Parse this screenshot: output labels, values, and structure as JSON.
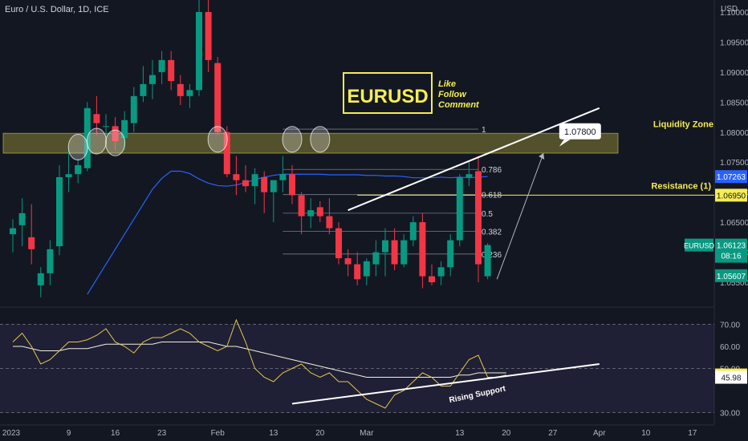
{
  "header": {
    "symbol_title": "Euro / U.S. Dollar, 1D, ICE",
    "currency": "USD"
  },
  "chart_data": {
    "type": "candlestick",
    "instrument": "EURUSD",
    "price_axis": {
      "min": 1.051,
      "max": 1.102,
      "ticks": [
        "1.05500",
        "1.06000",
        "1.06500",
        "1.07000",
        "1.07500",
        "1.08000",
        "1.08500",
        "1.09000",
        "1.09500",
        "1.10000"
      ]
    },
    "time_axis": {
      "labels": [
        "2023",
        "9",
        "16",
        "23",
        "Feb",
        "13",
        "20",
        "Mar",
        "13",
        "20",
        "27",
        "Apr",
        "10",
        "17"
      ],
      "label_bar_index": [
        -10,
        6,
        11,
        16,
        22,
        28,
        33,
        38,
        48,
        53,
        58,
        63,
        68,
        73
      ]
    },
    "candles": [
      [
        1.063,
        1.0655,
        1.06,
        1.064
      ],
      [
        1.0645,
        1.069,
        1.061,
        1.0665
      ],
      [
        1.0625,
        1.068,
        1.058,
        1.0605
      ],
      [
        1.0545,
        1.0575,
        1.0525,
        1.0565
      ],
      [
        1.0565,
        1.062,
        1.0545,
        1.0605
      ],
      [
        1.061,
        1.0745,
        1.0595,
        1.0725
      ],
      [
        1.0725,
        1.077,
        1.07,
        1.073
      ],
      [
        1.073,
        1.0755,
        1.0715,
        1.0745
      ],
      [
        1.074,
        1.085,
        1.0735,
        1.084
      ],
      [
        1.083,
        1.086,
        1.0795,
        1.0815
      ],
      [
        1.081,
        1.083,
        1.0785,
        1.081
      ],
      [
        1.081,
        1.0825,
        1.077,
        1.0785
      ],
      [
        1.079,
        1.0835,
        1.077,
        1.082
      ],
      [
        1.0815,
        1.0875,
        1.08,
        1.086
      ],
      [
        1.086,
        1.091,
        1.085,
        1.088
      ],
      [
        1.088,
        1.092,
        1.0855,
        1.0895
      ],
      [
        1.09,
        1.0935,
        1.088,
        1.092
      ],
      [
        1.092,
        1.0935,
        1.087,
        1.0885
      ],
      [
        1.088,
        1.0895,
        1.0845,
        1.086
      ],
      [
        1.086,
        1.088,
        1.084,
        1.087
      ],
      [
        1.087,
        1.103,
        1.086,
        1.1
      ],
      [
        1.1,
        1.1035,
        1.09,
        1.092
      ],
      [
        1.0915,
        1.0925,
        1.0795,
        1.08
      ],
      [
        1.08,
        1.081,
        1.0725,
        1.073
      ],
      [
        1.073,
        1.076,
        1.0695,
        1.072
      ],
      [
        1.072,
        1.0745,
        1.07,
        1.071
      ],
      [
        1.071,
        1.074,
        1.068,
        1.073
      ],
      [
        1.0725,
        1.0735,
        1.0665,
        1.07
      ],
      [
        1.07,
        1.072,
        1.065,
        1.072
      ],
      [
        1.072,
        1.076,
        1.07,
        1.073
      ],
      [
        1.073,
        1.0745,
        1.068,
        1.0695
      ],
      [
        1.0695,
        1.07,
        1.063,
        1.066
      ],
      [
        1.066,
        1.069,
        1.064,
        1.067
      ],
      [
        1.0675,
        1.0685,
        1.065,
        1.066
      ],
      [
        1.066,
        1.069,
        1.063,
        1.064
      ],
      [
        1.064,
        1.065,
        1.058,
        1.059
      ],
      [
        1.059,
        1.0605,
        1.056,
        1.058
      ],
      [
        1.058,
        1.06,
        1.0545,
        1.0555
      ],
      [
        1.056,
        1.059,
        1.0545,
        1.0585
      ],
      [
        1.058,
        1.062,
        1.056,
        1.06
      ],
      [
        1.06,
        1.064,
        1.056,
        1.062
      ],
      [
        1.062,
        1.064,
        1.057,
        1.058
      ],
      [
        1.058,
        1.063,
        1.0575,
        1.062
      ],
      [
        1.062,
        1.066,
        1.061,
        1.065
      ],
      [
        1.065,
        1.0665,
        1.054,
        1.056
      ],
      [
        1.056,
        1.058,
        1.0545,
        1.055
      ],
      [
        1.056,
        1.0585,
        1.0545,
        1.0575
      ],
      [
        1.0575,
        1.063,
        1.056,
        1.062
      ],
      [
        1.062,
        1.073,
        1.061,
        1.0725
      ],
      [
        1.0725,
        1.075,
        1.071,
        1.073
      ],
      [
        1.0735,
        1.076,
        1.055,
        1.058
      ],
      [
        1.056,
        1.0615,
        1.0555,
        1.0612
      ]
    ],
    "moving_average": {
      "start_bar": 8,
      "values": [
        1.053,
        1.0555,
        1.058,
        1.0605,
        1.063,
        1.0655,
        1.068,
        1.0705,
        1.0723,
        1.0735,
        1.0735,
        1.0731,
        1.0722,
        1.0715,
        1.0711,
        1.071,
        1.0712,
        1.0716,
        1.0721,
        1.0725,
        1.0728,
        1.073,
        1.073,
        1.073,
        1.073,
        1.073,
        1.0729,
        1.0729,
        1.0729,
        1.0729,
        1.0728,
        1.0728,
        1.0727,
        1.0727,
        1.0726,
        1.0724,
        1.0724,
        1.0724,
        1.0725,
        1.0724,
        1.0725,
        1.0724,
        1.0725,
        1.0726
      ]
    },
    "zone": {
      "label": "Liquidity Zone",
      "from": 1.0765,
      "to": 1.0798,
      "start_bar": 0,
      "end_bar": 65
    },
    "resistance": {
      "label": "Resistance (1)",
      "value": 1.0695,
      "start_bar": 37,
      "end_bar": 65
    },
    "fibonacci": {
      "start_bar": 29,
      "end_bar": 50,
      "levels": [
        {
          "label": "1",
          "value": 1.0805
        },
        {
          "label": "0.786",
          "value": 1.0738
        },
        {
          "label": "0.618",
          "value": 1.0696
        },
        {
          "label": "0.5",
          "value": 1.0665
        },
        {
          "label": "0.382",
          "value": 1.0635
        },
        {
          "label": "0.236",
          "value": 1.0597
        }
      ]
    },
    "circles": [
      {
        "bar": 7,
        "price": 1.0775
      },
      {
        "bar": 9,
        "price": 1.0785
      },
      {
        "bar": 11,
        "price": 1.0782
      },
      {
        "bar": 22,
        "price": 1.0788
      },
      {
        "bar": 30,
        "price": 1.0788
      },
      {
        "bar": 33,
        "price": 1.0788
      }
    ],
    "trend_line": [
      {
        "bar": 36,
        "price": 1.067
      },
      {
        "bar": 63,
        "price": 1.084
      }
    ],
    "target": {
      "label": "1.07800",
      "value": 1.078,
      "arrow_from": {
        "bar": 52,
        "price": 1.0555
      },
      "arrow_to": {
        "bar": 57,
        "price": 1.0765
      }
    },
    "brand_box": {
      "text": "EURUSD",
      "tagline": [
        "Like",
        "Follow",
        "Comment"
      ]
    },
    "price_tags": [
      {
        "label": "1.07263",
        "value": 1.0726,
        "color": "#2962ff"
      },
      {
        "label": "1.06950",
        "value": 1.0695,
        "color": "#f5ed53"
      },
      {
        "label": "1.06123",
        "value": 1.0612,
        "color": "#089981",
        "sub": "08:16",
        "name": "EURUSD"
      },
      {
        "label": "1.05607",
        "value": 1.0561,
        "color": "#089981"
      }
    ],
    "oscillator": {
      "min": 28,
      "max": 76,
      "ticks": [
        "30.00",
        "50.00",
        "60.00",
        "70.00"
      ],
      "band": [
        30,
        70
      ],
      "line": [
        62,
        66,
        60,
        52,
        54,
        58,
        62,
        62,
        63,
        65,
        68,
        62,
        60,
        57,
        62,
        64,
        64,
        66,
        68,
        66,
        62,
        60,
        58,
        60,
        72,
        62,
        50,
        46,
        44,
        48,
        50,
        52,
        48,
        46,
        48,
        44,
        44,
        40,
        36,
        34,
        32,
        38,
        40,
        44,
        48,
        46,
        42,
        42,
        48,
        54,
        56,
        46,
        46,
        47
      ],
      "signal": [
        60,
        60,
        59,
        58,
        58,
        58,
        59,
        59,
        59,
        60,
        61,
        61,
        61,
        61,
        61,
        61,
        62,
        62,
        62,
        62,
        62,
        62,
        61,
        60,
        60,
        59,
        58,
        57,
        56,
        55,
        54,
        53,
        52,
        51,
        50,
        49,
        48,
        47,
        46,
        46,
        46,
        46,
        46,
        46,
        46,
        46,
        46,
        46,
        47,
        47,
        48,
        48,
        48,
        48
      ],
      "tags": [
        {
          "label": "47.05",
          "value": 47.05,
          "color": "#f5ed53"
        },
        {
          "label": "45.98",
          "value": 45.98,
          "color": "#ffffff"
        }
      ],
      "support_line": {
        "label": "Rising Support",
        "from": {
          "bar": 30,
          "value": 34
        },
        "to": {
          "bar": 63,
          "value": 52
        }
      }
    }
  }
}
